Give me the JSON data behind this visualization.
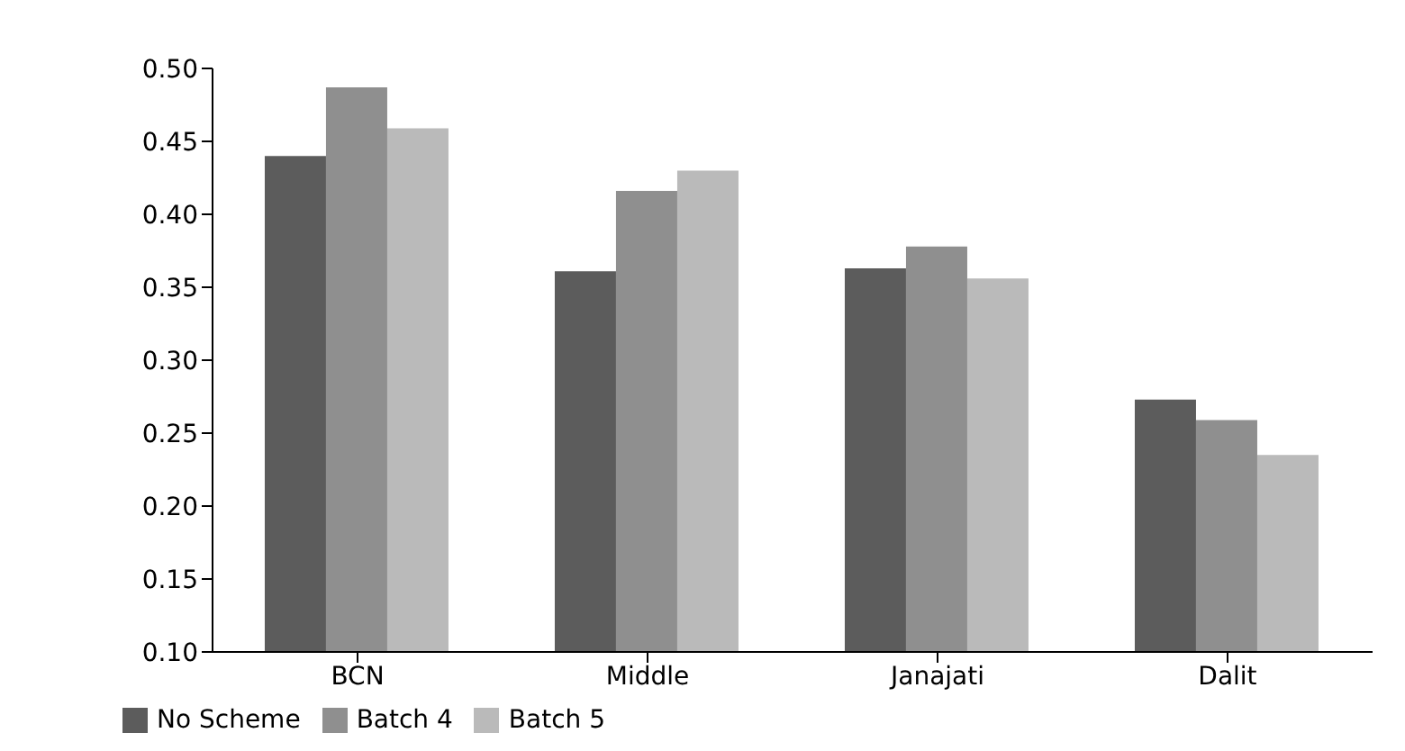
{
  "chart_data": {
    "type": "bar",
    "categories": [
      "BCN",
      "Middle",
      "Janajati",
      "Dalit"
    ],
    "series": [
      {
        "name": "No Scheme",
        "color": "#5c5c5c",
        "values": [
          0.44,
          0.361,
          0.363,
          0.273
        ]
      },
      {
        "name": "Batch 4",
        "color": "#8f8f8f",
        "values": [
          0.487,
          0.416,
          0.378,
          0.259
        ]
      },
      {
        "name": "Batch 5",
        "color": "#bababa",
        "values": [
          0.459,
          0.43,
          0.356,
          0.235
        ]
      }
    ],
    "ylim": [
      0.1,
      0.5
    ],
    "yticks": [
      {
        "value": 0.1,
        "label": "0.10"
      },
      {
        "value": 0.15,
        "label": "0.15"
      },
      {
        "value": 0.2,
        "label": "0.20"
      },
      {
        "value": 0.25,
        "label": "0.25"
      },
      {
        "value": 0.3,
        "label": "0.30"
      },
      {
        "value": 0.35,
        "label": "0.35"
      },
      {
        "value": 0.4,
        "label": "0.40"
      },
      {
        "value": 0.45,
        "label": "0.45"
      },
      {
        "value": 0.5,
        "label": "0.50"
      }
    ],
    "grid": false,
    "legend": "bottom left"
  }
}
